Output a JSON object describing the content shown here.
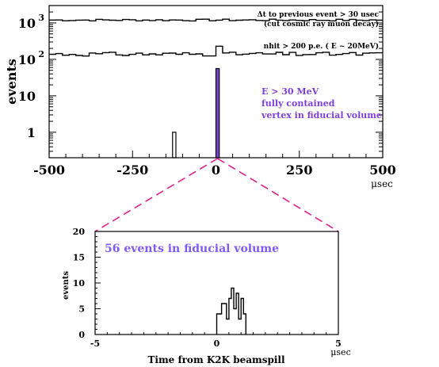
{
  "chart_data": [
    {
      "type": "step",
      "x_unit": "μsec",
      "ylabel": "events",
      "xlim": [
        -500,
        500
      ],
      "ylog": true,
      "ylim": [
        0.2,
        3000
      ],
      "x_ticks": [
        "-500",
        "-250",
        "0",
        "250",
        "500"
      ],
      "y_ticks": [
        {
          "value": 1,
          "base": "1",
          "exp": ""
        },
        {
          "value": 10,
          "base": "10",
          "exp": ""
        },
        {
          "value": 100,
          "base": "10",
          "exp": "2"
        },
        {
          "value": 1000,
          "base": "10",
          "exp": "3"
        }
      ],
      "series": [
        {
          "key": "cosmic",
          "labels": [
            "Δt to previous event > 30 usec",
            "(cut cosmic ray muon decay)"
          ],
          "level": 1200,
          "bins": 50
        },
        {
          "key": "nhit",
          "labels": [
            "nhit > 200 p.e. ( E ~ 20MeV)"
          ],
          "level": 140,
          "bins": 50,
          "peak_x": [
            0,
            10
          ],
          "peak_value": 230
        },
        {
          "key": "selected",
          "labels": [
            "E > 30 MeV",
            "fully contained",
            "vertex in fiducial volume"
          ],
          "color": "#7f3fd8",
          "bars": [
            {
              "x": [
                -130,
                -120
              ],
              "value": 1
            },
            {
              "x": [
                0,
                10
              ],
              "value": 56
            }
          ]
        }
      ]
    },
    {
      "type": "step",
      "title": "56 events in fiducial volume",
      "title_color": "#7f5bf0",
      "xlabel": "Time from K2K beamspill",
      "x_unit": "μsec",
      "ylabel": "events",
      "xlim": [
        -5,
        5
      ],
      "ylim": [
        0,
        20
      ],
      "x_ticks": [
        "-5",
        "0",
        "5"
      ],
      "y_ticks": [
        "0",
        "5",
        "10",
        "15",
        "20"
      ],
      "bins": [
        {
          "x": [
            0.0,
            0.2
          ],
          "value": 4
        },
        {
          "x": [
            0.2,
            0.4
          ],
          "value": 6
        },
        {
          "x": [
            0.4,
            0.5
          ],
          "value": 3
        },
        {
          "x": [
            0.5,
            0.6
          ],
          "value": 7
        },
        {
          "x": [
            0.6,
            0.7
          ],
          "value": 9
        },
        {
          "x": [
            0.7,
            0.8
          ],
          "value": 5
        },
        {
          "x": [
            0.8,
            0.9
          ],
          "value": 8
        },
        {
          "x": [
            0.9,
            1.0
          ],
          "value": 3
        },
        {
          "x": [
            1.0,
            1.1
          ],
          "value": 7
        },
        {
          "x": [
            1.1,
            1.2
          ],
          "value": 4
        }
      ]
    }
  ],
  "connector_color": "#e0208a"
}
